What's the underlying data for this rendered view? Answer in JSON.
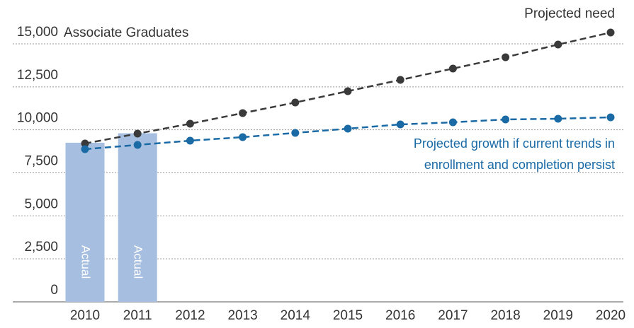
{
  "chart_data": {
    "type": "bar",
    "y_label": "Associate Graduates",
    "categories": [
      "2010",
      "2011",
      "2012",
      "2013",
      "2014",
      "2015",
      "2016",
      "2017",
      "2018",
      "2019",
      "2020"
    ],
    "series": [
      {
        "name": "Actual",
        "type": "bar",
        "color": "#a6bedf",
        "values": [
          9250,
          9800,
          null,
          null,
          null,
          null,
          null,
          null,
          null,
          null,
          null
        ]
      },
      {
        "name": "Projected need",
        "type": "line",
        "color": "#3a3a3a",
        "values": [
          9205,
          9781,
          10356,
          10973,
          11589,
          12247,
          12904,
          13562,
          14219,
          14959,
          15658
        ]
      },
      {
        "name": "Projected growth if current trends in enrollment and completion persist",
        "type": "line",
        "color": "#1a6aa6",
        "values": [
          8877,
          9123,
          9370,
          9575,
          9822,
          10068,
          10315,
          10438,
          10603,
          10644,
          10726
        ]
      }
    ],
    "ylim": [
      0,
      16000
    ],
    "yticks": [
      0,
      {
        "value": 2500,
        "label": "2,500"
      },
      {
        "value": 5000,
        "label": "5,000"
      },
      {
        "value": 7500,
        "label": "7,500"
      },
      {
        "value": 10000,
        "label": "10,000"
      },
      {
        "value": 12500,
        "label": "12,500"
      },
      {
        "value": 15000,
        "label": "15,000"
      }
    ],
    "grid": true
  }
}
